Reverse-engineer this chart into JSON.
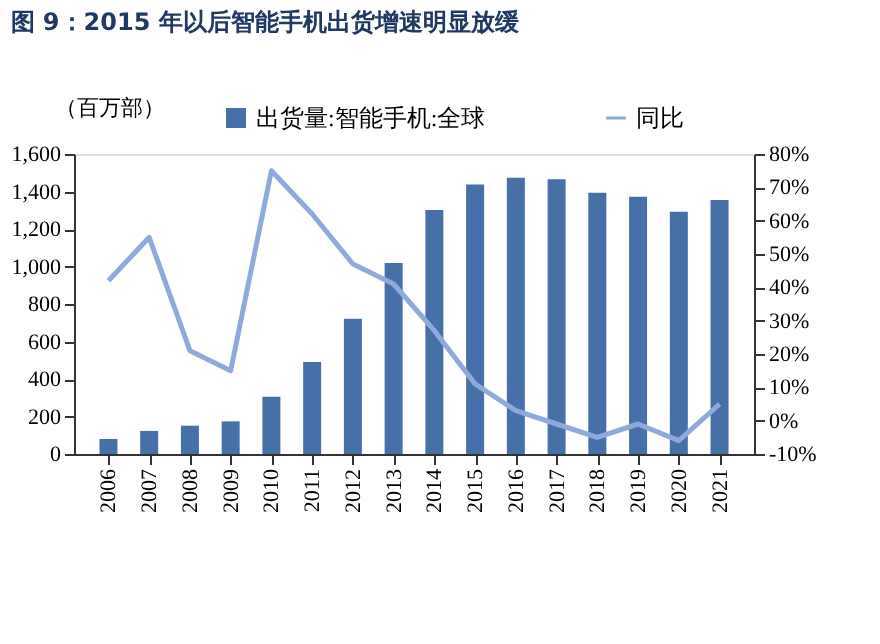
{
  "chart_data": {
    "type": "bar",
    "title": "图 9：2015 年以后智能手机出货增速明显放缓",
    "ylabel": "（百万部）",
    "categories": [
      "2006",
      "2007",
      "2008",
      "2009",
      "2010",
      "2011",
      "2012",
      "2013",
      "2014",
      "2015",
      "2016",
      "2017",
      "2018",
      "2019",
      "2020",
      "2021"
    ],
    "series": [
      {
        "name": "出货量:智能手机:全球",
        "color": "#4571a8",
        "values": [
          80,
          123,
          151,
          174,
          305,
          491,
          722,
          1019,
          1301,
          1437,
          1473,
          1466,
          1393,
          1372,
          1292,
          1355
        ]
      },
      {
        "name": "同比",
        "type": "line",
        "axis": "y2",
        "color": "#8eaadb",
        "values": [
          42,
          55,
          21,
          15,
          75,
          62,
          47,
          41,
          27,
          11,
          3,
          -1,
          -5,
          -1,
          -6,
          5
        ]
      }
    ],
    "ylim": [
      0,
      1600
    ],
    "yticks": [
      0,
      200,
      400,
      600,
      800,
      {
        "value": 1000,
        "label": "1,000"
      },
      {
        "value": 1200,
        "label": "1,200"
      },
      {
        "value": 1400,
        "label": "1,400"
      },
      {
        "value": 1600,
        "label": "1,600"
      }
    ],
    "y2lim": [
      -10,
      80
    ],
    "y2ticks": [
      {
        "value": -10,
        "label": "-10%"
      },
      {
        "value": 0,
        "label": "0%"
      },
      {
        "value": 10,
        "label": "10%"
      },
      {
        "value": 20,
        "label": "20%"
      },
      {
        "value": 30,
        "label": "30%"
      },
      {
        "value": 40,
        "label": "40%"
      },
      {
        "value": 50,
        "label": "50%"
      },
      {
        "value": 60,
        "label": "60%"
      },
      {
        "value": 70,
        "label": "70%"
      },
      {
        "value": 80,
        "label": "80%"
      }
    ],
    "legend": "top",
    "grid": false
  }
}
